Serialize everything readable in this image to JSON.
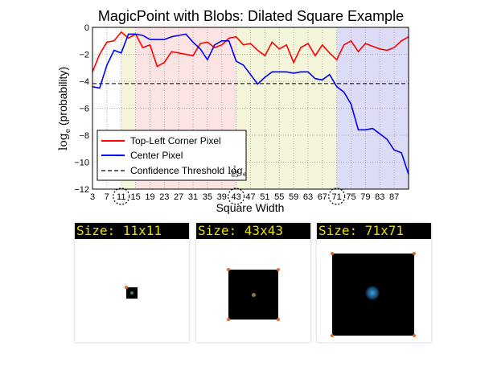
{
  "chart_data": {
    "type": "line",
    "title": "MagicPoint with Blobs: Dilated Square Example",
    "xlabel": "Square Width",
    "ylabel": "log_e (probability)",
    "ylabel_parts": {
      "log": "log",
      "sub": "e",
      "rest": " (probability)"
    },
    "xlim": [
      3,
      91
    ],
    "ylim": [
      -12,
      0
    ],
    "yticks": [
      "0",
      "−2",
      "−4",
      "−6",
      "−8",
      "−10",
      "−12"
    ],
    "xticks": [
      "3",
      "7",
      "11",
      "15",
      "19",
      "23",
      "27",
      "31",
      "35",
      "39",
      "43",
      "47",
      "51",
      "55",
      "59",
      "63",
      "67",
      "71",
      "75",
      "79",
      "83",
      "87"
    ],
    "highlighted_ticks": [
      "11",
      "43",
      "71"
    ],
    "regions": [
      {
        "from": 3,
        "to": 11,
        "color": "#ffffff"
      },
      {
        "from": 11,
        "to": 15,
        "color": "#f5f5dc"
      },
      {
        "from": 15,
        "to": 43,
        "color": "#fce4e4"
      },
      {
        "from": 43,
        "to": 71,
        "color": "#f5f5dc"
      },
      {
        "from": 71,
        "to": 91,
        "color": "#dcdcf6"
      }
    ],
    "threshold": -4.17,
    "grid": true,
    "legend_position": "lower-left",
    "series": [
      {
        "name": "Top-Left Corner Pixel",
        "color": "#ff0000",
        "x": [
          3,
          5,
          7,
          9,
          11,
          13,
          15,
          17,
          19,
          21,
          23,
          25,
          27,
          29,
          31,
          33,
          35,
          37,
          39,
          41,
          43,
          45,
          47,
          49,
          51,
          53,
          55,
          57,
          59,
          61,
          63,
          65,
          67,
          69,
          71,
          73,
          75,
          77,
          79,
          81,
          83,
          85,
          87,
          89,
          91
        ],
        "y": [
          -3.3,
          -2.0,
          -1.1,
          -1.0,
          -0.35,
          -0.8,
          -0.5,
          -1.5,
          -1.3,
          -2.9,
          -2.6,
          -1.8,
          -1.9,
          -2.0,
          -2.1,
          -1.2,
          -1.1,
          -1.5,
          -1.3,
          -0.8,
          -0.7,
          -1.3,
          -1.2,
          -1.7,
          -2.1,
          -1.1,
          -1.6,
          -1.3,
          -2.6,
          -1.5,
          -1.2,
          -2.1,
          -1.3,
          -1.9,
          -2.4,
          -1.3,
          -1.0,
          -1.8,
          -1.2,
          -1.4,
          -1.6,
          -1.7,
          -1.5,
          -1.0,
          -0.7
        ]
      },
      {
        "name": "Center Pixel",
        "color": "#0000ff",
        "x": [
          3,
          5,
          7,
          9,
          11,
          13,
          15,
          17,
          19,
          21,
          23,
          25,
          27,
          29,
          31,
          33,
          35,
          37,
          39,
          41,
          43,
          45,
          47,
          49,
          51,
          53,
          55,
          57,
          59,
          61,
          63,
          65,
          67,
          69,
          71,
          73,
          75,
          77,
          79,
          81,
          83,
          85,
          87,
          89,
          91
        ],
        "y": [
          -4.4,
          -4.5,
          -2.8,
          -1.7,
          -1.9,
          -0.5,
          -0.5,
          -0.6,
          -0.9,
          -0.9,
          -0.9,
          -0.7,
          -0.6,
          -0.5,
          -1.1,
          -1.6,
          -2.4,
          -1.3,
          -1.0,
          -1.0,
          -2.5,
          -2.8,
          -3.5,
          -4.2,
          -3.7,
          -3.3,
          -3.3,
          -3.3,
          -3.4,
          -3.3,
          -3.3,
          -3.8,
          -3.9,
          -3.5,
          -4.4,
          -4.8,
          -5.7,
          -7.6,
          -7.6,
          -7.5,
          -7.9,
          -8.3,
          -9.1,
          -9.3,
          -10.9
        ]
      }
    ],
    "legend": [
      {
        "label": "Top-Left Corner Pixel",
        "style": "solid",
        "color": "#ff0000"
      },
      {
        "label": "Center Pixel",
        "style": "solid",
        "color": "#0000ff"
      },
      {
        "label": "Confidence Threshold log_e (1/65)",
        "style": "dashed",
        "color": "#000000",
        "parts": {
          "text": "Confidence Threshold",
          "log": "log",
          "sub": "e",
          "num": "1",
          "den": "65"
        }
      }
    ]
  },
  "thumbnails": [
    {
      "label": "Size: 11x11"
    },
    {
      "label": "Size: 43x43"
    },
    {
      "label": "Size: 71x71"
    }
  ]
}
